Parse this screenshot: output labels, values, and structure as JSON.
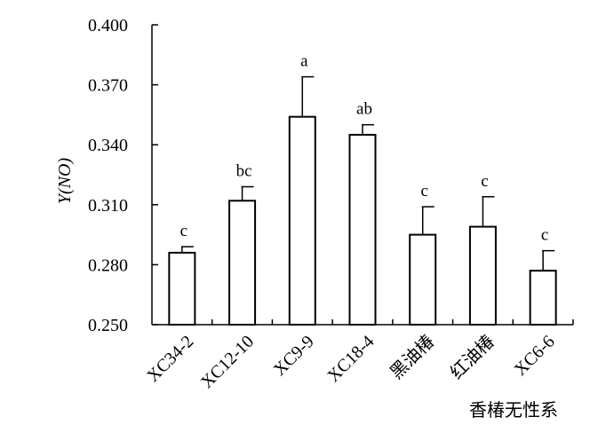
{
  "chart_data": {
    "type": "bar",
    "ylabel": "Y(NO)",
    "xlabel": "香椿无性系",
    "ylim": [
      0.25,
      0.4
    ],
    "yticks": [
      "0.250",
      "0.280",
      "0.310",
      "0.340",
      "0.370",
      "0.400"
    ],
    "categories": [
      "XC34-2",
      "XC12-10",
      "XC9-9",
      "XC18-4",
      "黑油椿",
      "红油椿",
      "XC6-6"
    ],
    "values": [
      0.286,
      0.312,
      0.354,
      0.345,
      0.295,
      0.299,
      0.277
    ],
    "errors": [
      0.003,
      0.007,
      0.02,
      0.005,
      0.014,
      0.015,
      0.01
    ],
    "significance": [
      "c",
      "bc",
      "a",
      "ab",
      "c",
      "c",
      "c"
    ],
    "grid": false,
    "colors": {
      "bar_fill": "#ffffff",
      "bar_stroke": "#000000"
    }
  }
}
